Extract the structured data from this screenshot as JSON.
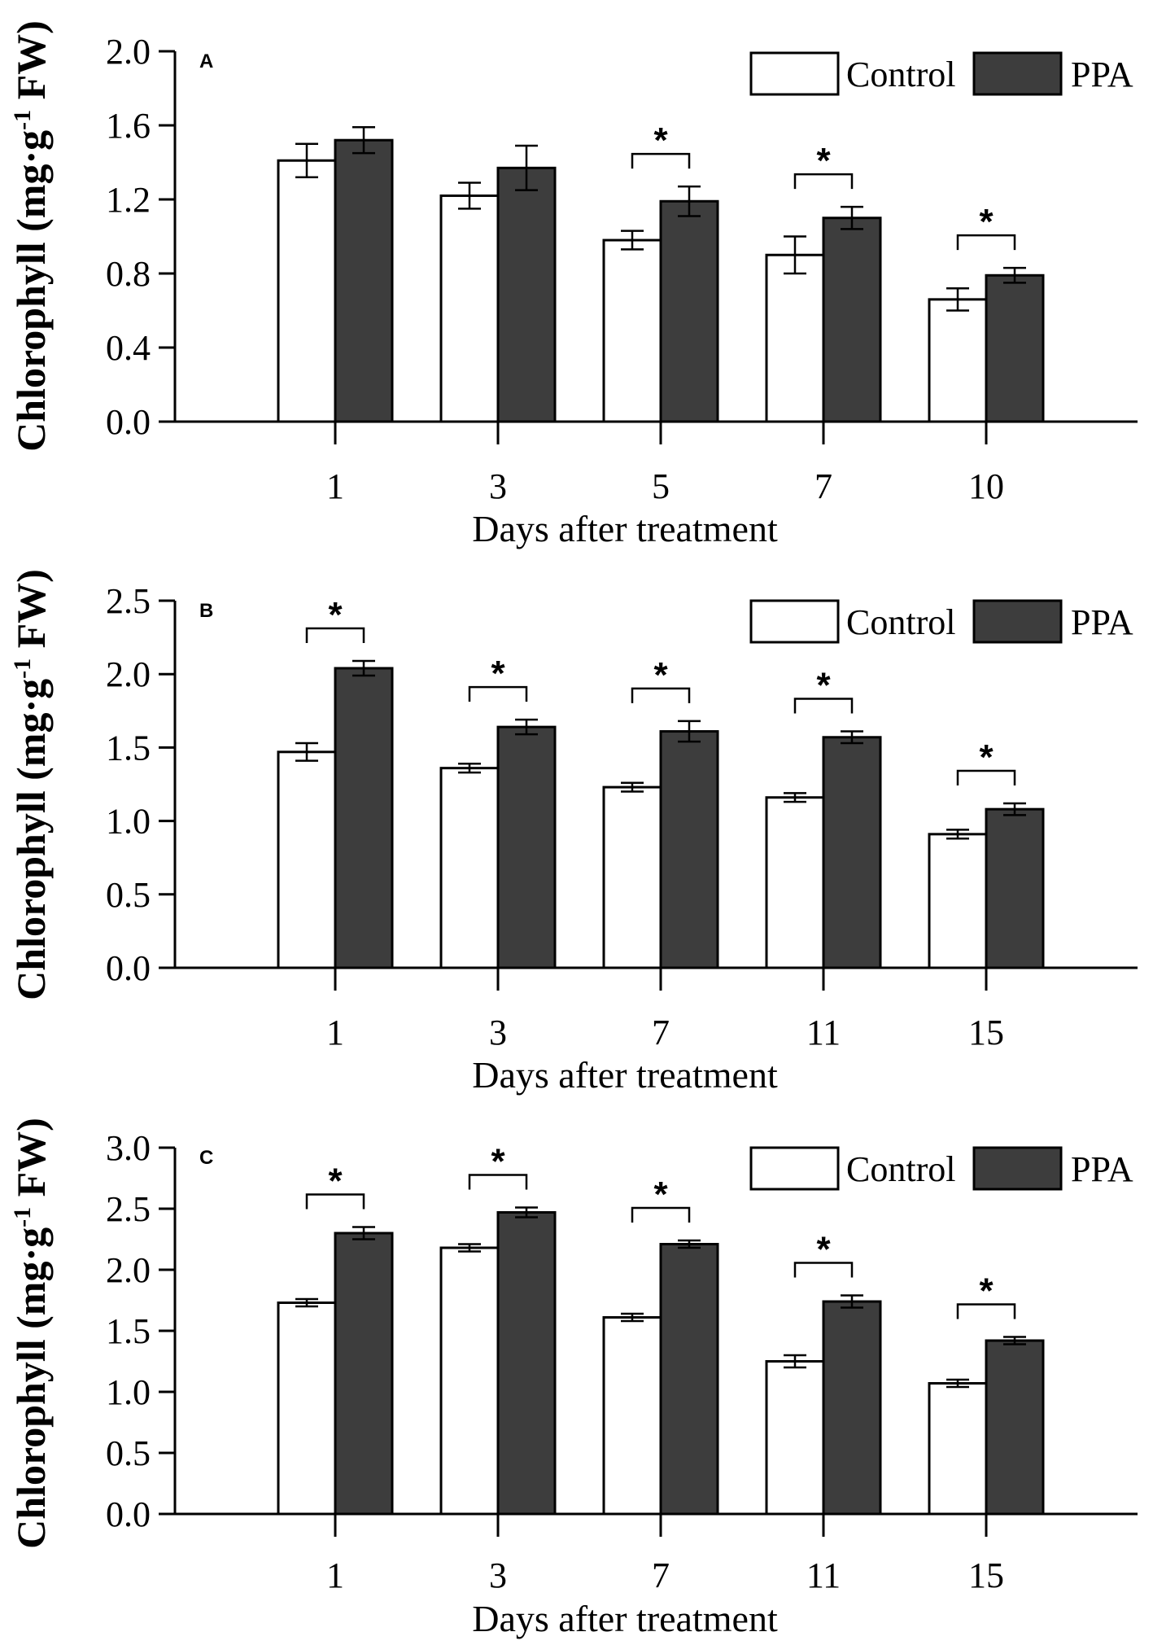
{
  "chart_data": [
    {
      "type": "bar",
      "panel_label": "A",
      "categories": [
        "1",
        "3",
        "5",
        "7",
        "10"
      ],
      "series": [
        {
          "name": "Control",
          "values": [
            1.41,
            1.22,
            0.98,
            0.9,
            0.66
          ],
          "errors": [
            0.09,
            0.07,
            0.05,
            0.1,
            0.06
          ]
        },
        {
          "name": "PPA",
          "values": [
            1.52,
            1.37,
            1.19,
            1.1,
            0.79
          ],
          "errors": [
            0.07,
            0.12,
            0.08,
            0.06,
            0.04
          ]
        }
      ],
      "significance": [
        "",
        "",
        "*",
        "*",
        "*"
      ],
      "yticks": [
        "0.0",
        "0.4",
        "0.8",
        "1.2",
        "1.6",
        "2.0"
      ],
      "ylim": [
        0,
        2.0
      ],
      "xlabel": "Days after treatment",
      "ylabel": {
        "main": "Chlorophyll (mg·g",
        "sup": "-1",
        "tail": " FW)"
      },
      "legend_position": "top-right",
      "colors": {
        "Control": "#ffffff",
        "PPA": "#3d3d3d"
      }
    },
    {
      "type": "bar",
      "panel_label": "B",
      "categories": [
        "1",
        "3",
        "7",
        "11",
        "15"
      ],
      "series": [
        {
          "name": "Control",
          "values": [
            1.47,
            1.36,
            1.23,
            1.16,
            0.91
          ],
          "errors": [
            0.06,
            0.03,
            0.03,
            0.03,
            0.03
          ]
        },
        {
          "name": "PPA",
          "values": [
            2.04,
            1.64,
            1.61,
            1.57,
            1.08
          ],
          "errors": [
            0.05,
            0.05,
            0.07,
            0.04,
            0.04
          ]
        }
      ],
      "significance": [
        "*",
        "*",
        "*",
        "*",
        "*"
      ],
      "yticks": [
        "0.0",
        "0.5",
        "1.0",
        "1.5",
        "2.0",
        "2.5"
      ],
      "ylim": [
        0,
        2.5
      ],
      "xlabel": "Days after treatment",
      "ylabel": {
        "main": "Chlorophyll (mg·g",
        "sup": "-1",
        "tail": " FW)"
      },
      "legend_position": "top-right",
      "colors": {
        "Control": "#ffffff",
        "PPA": "#3d3d3d"
      }
    },
    {
      "type": "bar",
      "panel_label": "C",
      "categories": [
        "1",
        "3",
        "7",
        "11",
        "15"
      ],
      "series": [
        {
          "name": "Control",
          "values": [
            1.73,
            2.18,
            1.61,
            1.25,
            1.07
          ],
          "errors": [
            0.03,
            0.03,
            0.03,
            0.05,
            0.03
          ]
        },
        {
          "name": "PPA",
          "values": [
            2.3,
            2.47,
            2.21,
            1.74,
            1.42
          ],
          "errors": [
            0.05,
            0.04,
            0.03,
            0.05,
            0.03
          ]
        }
      ],
      "significance": [
        "*",
        "*",
        "*",
        "*",
        "*"
      ],
      "yticks": [
        "0.0",
        "0.5",
        "1.0",
        "1.5",
        "2.0",
        "2.5",
        "3.0"
      ],
      "ylim": [
        0,
        3.0
      ],
      "xlabel": "Days after treatment",
      "ylabel": {
        "main": "Chlorophyll (mg·g",
        "sup": "-1",
        "tail": " FW)"
      },
      "legend_position": "top-right",
      "colors": {
        "Control": "#ffffff",
        "PPA": "#3d3d3d"
      }
    }
  ]
}
